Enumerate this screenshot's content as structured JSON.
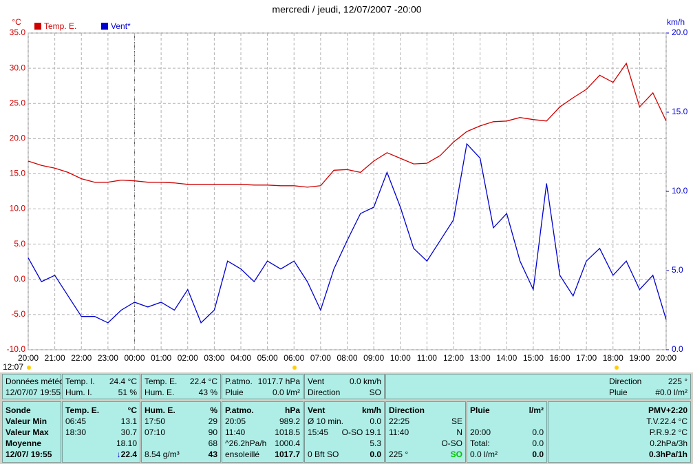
{
  "chart_data": {
    "type": "line",
    "title": "mercredi / jeudi, 12/07/2007  -20:00",
    "ylabel": "°C",
    "y2label": "km/h",
    "corner_label": "12:07",
    "xlim": [
      0,
      24
    ],
    "xticks": [
      {
        "value": 0,
        "label": "20:00"
      },
      {
        "value": 1,
        "label": "21:00"
      },
      {
        "value": 2,
        "label": "22:00"
      },
      {
        "value": 3,
        "label": "23:00"
      },
      {
        "value": 4,
        "label": "00:00"
      },
      {
        "value": 5,
        "label": "01:00"
      },
      {
        "value": 6,
        "label": "02:00"
      },
      {
        "value": 7,
        "label": "03:00"
      },
      {
        "value": 8,
        "label": "04:00"
      },
      {
        "value": 9,
        "label": "05:00"
      },
      {
        "value": 10,
        "label": "06:00"
      },
      {
        "value": 11,
        "label": "07:00"
      },
      {
        "value": 12,
        "label": "08:00"
      },
      {
        "value": 13,
        "label": "09:00"
      },
      {
        "value": 14,
        "label": "10:00"
      },
      {
        "value": 15,
        "label": "11:00"
      },
      {
        "value": 16,
        "label": "12:00"
      },
      {
        "value": 17,
        "label": "13:00"
      },
      {
        "value": 18,
        "label": "14:00"
      },
      {
        "value": 19,
        "label": "15:00"
      },
      {
        "value": 20,
        "label": "16:00"
      },
      {
        "value": 21,
        "label": "17:00"
      },
      {
        "value": 22,
        "label": "18:00"
      },
      {
        "value": 23,
        "label": "19:00"
      },
      {
        "value": 24,
        "label": "20:00"
      }
    ],
    "ylim": [
      -10,
      35
    ],
    "yticks": [
      {
        "value": -10,
        "label": "-10.0"
      },
      {
        "value": -5,
        "label": "-5.0"
      },
      {
        "value": 0,
        "label": "0.0"
      },
      {
        "value": 5,
        "label": "5.0"
      },
      {
        "value": 10,
        "label": "10.0"
      },
      {
        "value": 15,
        "label": "15.0"
      },
      {
        "value": 20,
        "label": "20.0"
      },
      {
        "value": 25,
        "label": "25.0"
      },
      {
        "value": 30,
        "label": "30.0"
      },
      {
        "value": 35,
        "label": "35.0"
      }
    ],
    "y2lim": [
      0,
      20
    ],
    "y2ticks": [
      {
        "value": 0,
        "label": "0.0"
      },
      {
        "value": 5,
        "label": "5.0"
      },
      {
        "value": 10,
        "label": "10.0"
      },
      {
        "value": 15,
        "label": "15.0"
      },
      {
        "value": 20,
        "label": "20.0"
      }
    ],
    "grid": true,
    "x": [
      0,
      0.5,
      1,
      1.5,
      2,
      2.5,
      3,
      3.5,
      4,
      4.5,
      5,
      5.5,
      6,
      6.5,
      7,
      7.5,
      8,
      8.5,
      9,
      9.5,
      10,
      10.5,
      11,
      11.5,
      12,
      12.5,
      13,
      13.5,
      14,
      14.5,
      15,
      15.5,
      16,
      16.5,
      17,
      17.5,
      18,
      18.5,
      19,
      19.5,
      20,
      20.5,
      21,
      21.5,
      22,
      22.5,
      23,
      23.5,
      24
    ],
    "series": [
      {
        "name": "Temp. E.",
        "color": "#d00000",
        "axis": "y",
        "values": [
          16.8,
          16.2,
          15.8,
          15.2,
          14.3,
          13.8,
          13.8,
          14.1,
          14.0,
          13.8,
          13.8,
          13.7,
          13.5,
          13.5,
          13.5,
          13.5,
          13.5,
          13.4,
          13.4,
          13.3,
          13.3,
          13.1,
          13.3,
          15.5,
          15.6,
          15.2,
          16.8,
          18.0,
          17.2,
          16.4,
          16.5,
          17.6,
          19.5,
          21.0,
          21.8,
          22.4,
          22.5,
          23.0,
          22.7,
          22.5,
          24.5,
          25.8,
          27.0,
          29.0,
          28.0,
          30.7,
          24.5,
          26.5,
          22.5
        ]
      },
      {
        "name": "Vent*",
        "color": "#0000d0",
        "axis": "y2",
        "values": [
          5.8,
          4.3,
          4.7,
          3.4,
          2.1,
          2.1,
          1.7,
          2.5,
          3.0,
          2.7,
          3.0,
          2.5,
          3.8,
          1.7,
          2.5,
          5.6,
          5.1,
          4.3,
          5.6,
          5.1,
          5.6,
          4.3,
          2.5,
          5.1,
          6.9,
          8.6,
          9.0,
          11.2,
          9.0,
          6.4,
          5.6,
          6.9,
          8.2,
          13.0,
          12.1,
          7.7,
          8.6,
          5.6,
          3.8,
          10.5,
          4.7,
          3.4,
          5.6,
          6.4,
          4.7,
          5.6,
          3.8,
          4.7,
          1.9
        ]
      }
    ]
  },
  "top_bar": [
    {
      "rows": [
        {
          "l": "Données météo"
        },
        {
          "l": "12/07/07 19:55"
        }
      ]
    },
    {
      "rows": [
        {
          "l": "Temp. I.",
          "r": "24.4 °C"
        },
        {
          "l": "Hum. I.",
          "r": "51 %"
        }
      ]
    },
    {
      "rows": [
        {
          "l": "Temp. E.",
          "r": "22.4 °C"
        },
        {
          "l": "Hum. E.",
          "r": "43 %"
        }
      ]
    },
    {
      "rows": [
        {
          "l": "P.atmo.",
          "r": "1017.7 hPa"
        },
        {
          "l": "Pluie",
          "r": "0.0 l/m²"
        }
      ]
    },
    {
      "rows": [
        {
          "l": "Vent",
          "r": "0.0 km/h"
        },
        {
          "l": "Direction",
          "r": "SO"
        }
      ]
    },
    {
      "rows": [
        {
          "l": "Direction",
          "r": "225 °"
        },
        {
          "l": "Pluie",
          "r": "#0.0 l/m²"
        }
      ]
    }
  ],
  "stats": [
    {
      "rows": [
        {
          "l": "Sonde"
        },
        {
          "l": "Valeur Min"
        },
        {
          "l": "Valeur Max"
        },
        {
          "l": "Moyenne"
        },
        {
          "l": "12/07/ 19:55"
        }
      ]
    },
    {
      "rows": [
        {
          "l": "Temp. E.",
          "r": "°C"
        },
        {
          "l": "06:45",
          "r": "13.1"
        },
        {
          "l": "18:30",
          "r": "30.7"
        },
        {
          "r": "18.10"
        },
        {
          "r": "22.4"
        }
      ]
    },
    {
      "rows": [
        {
          "l": "Hum. E.",
          "r": "%"
        },
        {
          "l": "17:50",
          "r": "29"
        },
        {
          "l": "07:10",
          "r": "90"
        },
        {
          "r": "68"
        },
        {
          "l": "8.54 g/m³",
          "r": "43"
        }
      ]
    },
    {
      "rows": [
        {
          "l": "P.atmo.",
          "r": "hPa"
        },
        {
          "l": "20:05",
          "r": "989.2"
        },
        {
          "l": "11:40",
          "r": "1018.5"
        },
        {
          "l": "^26.2hPa/h",
          "r": "1000.4"
        },
        {
          "l": "ensoleillé",
          "r": "1017.7"
        }
      ]
    },
    {
      "rows": [
        {
          "l": "Vent",
          "r": "km/h"
        },
        {
          "l": "Ø 10 min.",
          "r": "0.0"
        },
        {
          "l": "15:45",
          "r": "O-SO 19.1"
        },
        {
          "r": "5.3"
        },
        {
          "l": "0 Bft SO",
          "r": "0.0"
        }
      ]
    },
    {
      "rows": [
        {
          "l": "Direction"
        },
        {
          "l": "22:25",
          "r": "SE"
        },
        {
          "l": "11:40",
          "r": "N"
        },
        {
          "r": "O-SO"
        },
        {
          "l": "225 °",
          "r": "SO"
        }
      ]
    },
    {
      "rows": [
        {
          "l": "Pluie",
          "r": "l/m²"
        },
        {},
        {
          "l": "20:00",
          "r": "0.0"
        },
        {
          "l": "Total:",
          "r": "0.0"
        },
        {
          "l": "0.0 l/m²",
          "r": "0.0"
        }
      ]
    },
    {
      "rows": [
        {
          "r": "PMV+2:20"
        },
        {
          "r": "T.V.22.4 °C"
        },
        {
          "r": "P.R.9.2 °C"
        },
        {
          "r": "0.2hPa/3h"
        },
        {
          "r": "0.3hPa/1h"
        }
      ]
    }
  ]
}
